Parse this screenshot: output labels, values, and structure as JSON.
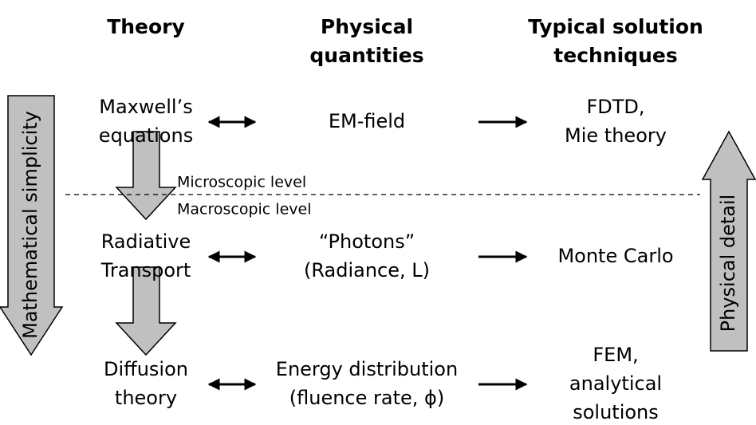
{
  "columns": [
    {
      "lines": [
        "Theory"
      ]
    },
    {
      "lines": [
        "Physical",
        "quantities"
      ]
    },
    {
      "lines": [
        "Typical solution",
        "techniques"
      ]
    }
  ],
  "rows": [
    {
      "theory": [
        "Maxwell’s",
        "equations"
      ],
      "quantity": [
        "EM-field"
      ],
      "technique": [
        "FDTD,",
        "Mie theory"
      ]
    },
    {
      "theory": [
        "Radiative",
        "Transport"
      ],
      "quantity": [
        "“Photons”",
        "(Radiance, L)"
      ],
      "technique": [
        "Monte Carlo"
      ]
    },
    {
      "theory": [
        "Diffusion",
        "theory"
      ],
      "quantity": [
        "Energy distribution",
        "(fluence rate, ϕ)"
      ],
      "technique": [
        "FEM,",
        "analytical",
        "solutions"
      ]
    }
  ],
  "levels": {
    "upper": "Microscopic level",
    "lower": "Macroscopic level"
  },
  "side_arrows": {
    "left": "Mathematical simplicity",
    "right": "Physical detail"
  }
}
